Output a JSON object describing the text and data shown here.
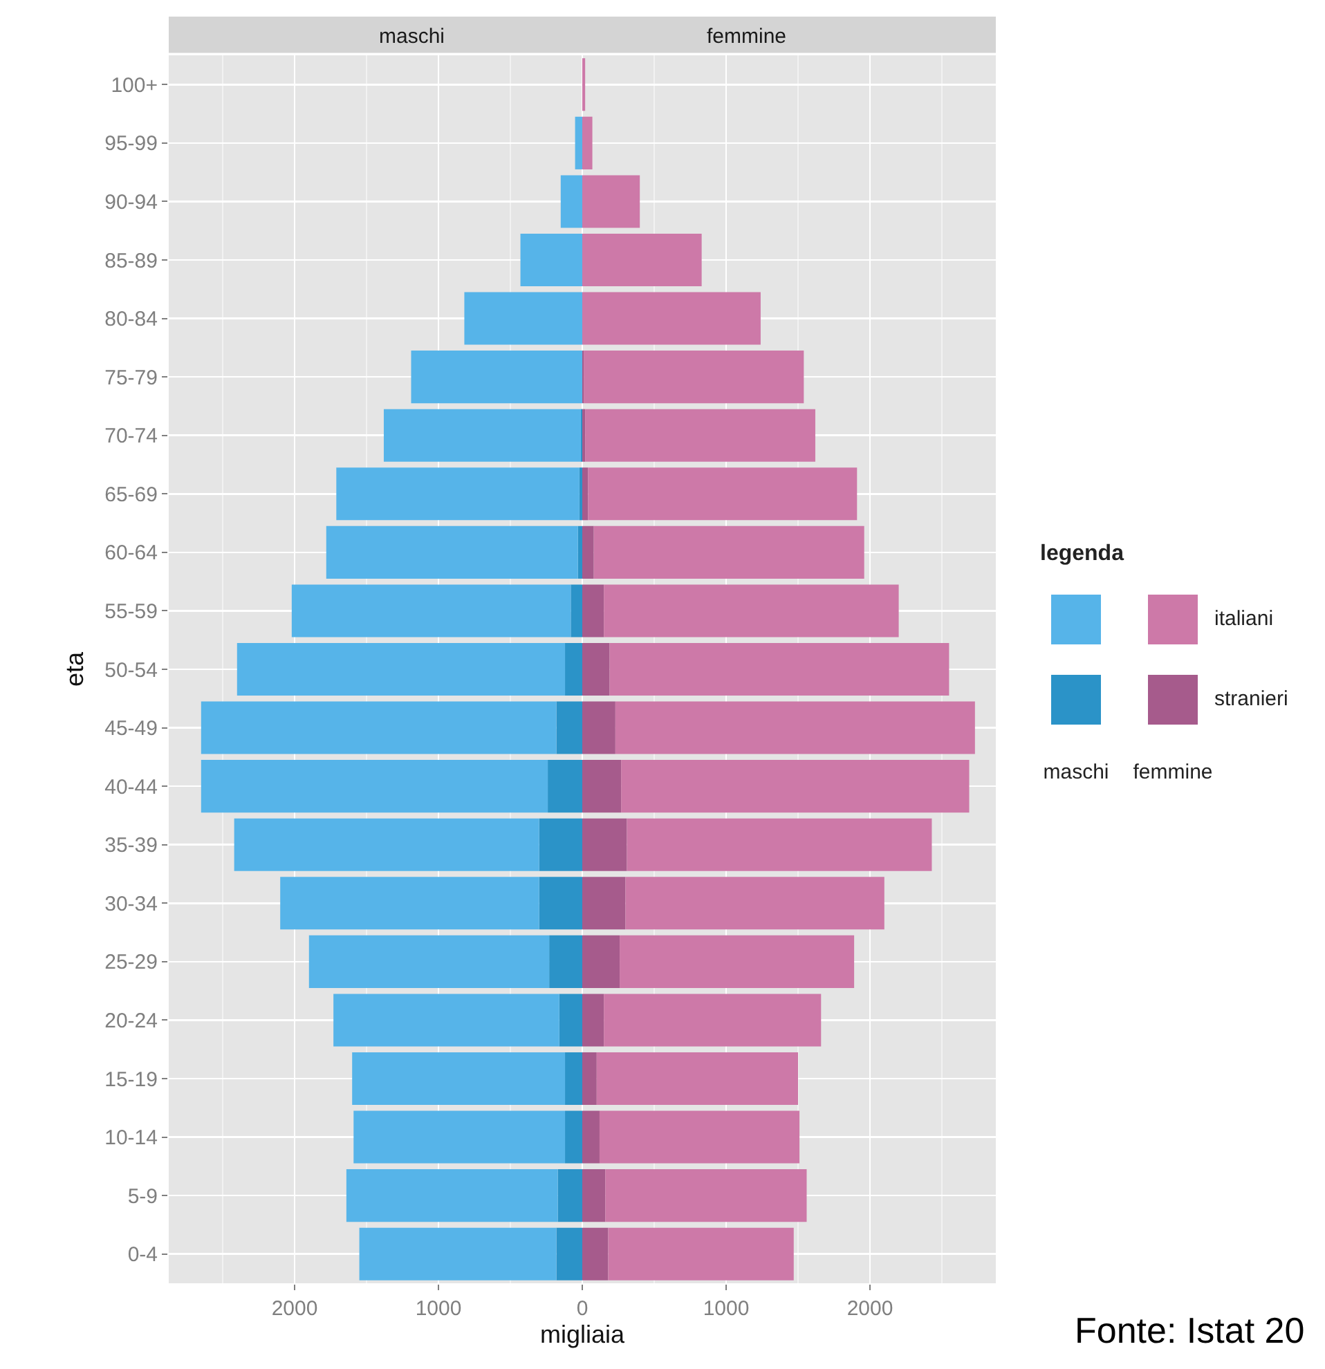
{
  "chart_data": {
    "type": "bar",
    "orientation": "horizontal",
    "stacked": true,
    "ylabel": "eta",
    "xlabel": "migliaia",
    "legend_title": "legenda",
    "legend": "right",
    "grid": true,
    "categories": [
      "100+",
      "95-99",
      "90-94",
      "85-89",
      "80-84",
      "75-79",
      "70-74",
      "65-69",
      "60-64",
      "55-59",
      "50-54",
      "45-49",
      "40-44",
      "35-39",
      "30-34",
      "25-29",
      "20-24",
      "15-19",
      "10-14",
      "5-9",
      "0-4"
    ],
    "series": [
      {
        "color": "#2b93c8",
        "values": [
          0,
          0,
          0,
          0,
          0,
          0,
          -10,
          -20,
          -30,
          -80,
          -120,
          -180,
          -240,
          -300,
          -300,
          -230,
          -160,
          -120,
          -120,
          -170,
          -180
        ]
      },
      {
        "color": "#56b4e9",
        "values": [
          0,
          -50,
          -150,
          -430,
          -820,
          -1190,
          -1370,
          -1690,
          -1750,
          -1940,
          -2280,
          -2470,
          -2410,
          -2120,
          -1800,
          -1670,
          -1570,
          -1480,
          -1470,
          -1470,
          -1370
        ]
      },
      {
        "name": "stranieri",
        "color": "#a65b8c",
        "values": [
          0,
          0,
          0,
          0,
          0,
          10,
          20,
          40,
          80,
          150,
          190,
          230,
          270,
          310,
          300,
          260,
          150,
          100,
          120,
          160,
          180
        ]
      },
      {
        "name": "italiani",
        "color": "#cd79a8",
        "values": [
          20,
          70,
          400,
          830,
          1240,
          1530,
          1600,
          1870,
          1880,
          2050,
          2360,
          2500,
          2420,
          2120,
          1800,
          1630,
          1510,
          1400,
          1390,
          1400,
          1290
        ]
      }
    ],
    "xlim": [
      -2875,
      2875
    ],
    "xticks": [
      {
        "value": -2000,
        "label": "2000"
      },
      {
        "value": -1000,
        "label": "1000"
      },
      0,
      1000,
      2000
    ],
    "annotations": [
      "maschi",
      "femmine",
      "Fonte: Istat 20"
    ]
  }
}
